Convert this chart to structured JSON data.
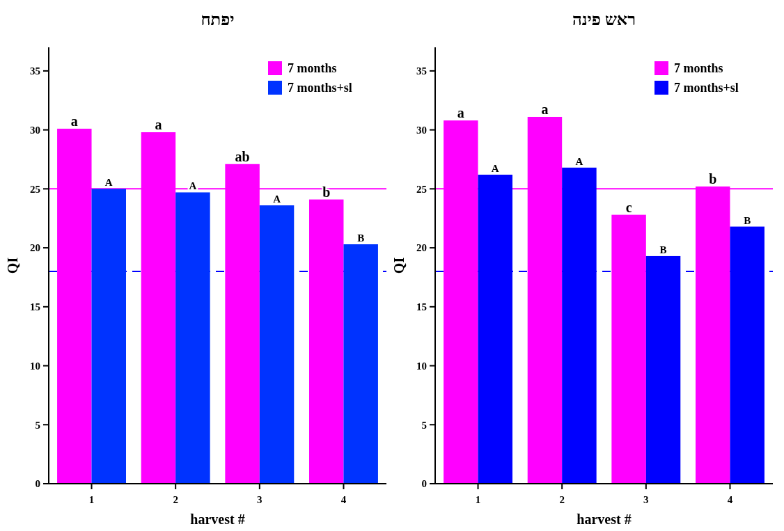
{
  "chart_data": [
    {
      "type": "bar",
      "title": "יפתח",
      "xlabel": "harvest #",
      "ylabel": "QI",
      "categories": [
        "1",
        "2",
        "3",
        "4"
      ],
      "ylim": [
        0,
        37
      ],
      "yticks": [
        0,
        5,
        10,
        15,
        20,
        25,
        30,
        35
      ],
      "legend": "top right",
      "grid": false,
      "series": [
        {
          "name": "7 months",
          "color": "#ff00ff",
          "values": [
            30.1,
            29.8,
            27.1,
            24.1
          ],
          "value_labels": [
            "a",
            "a",
            "ab",
            "b"
          ]
        },
        {
          "name": "7 months+sl",
          "color": "#0033ff",
          "values": [
            25.0,
            24.7,
            23.6,
            20.3
          ],
          "value_labels": [
            "A",
            "A",
            "A",
            "B"
          ]
        }
      ],
      "ref_lines": [
        {
          "axis": "y",
          "value": 25,
          "color": "#ff00ff",
          "line_style": "solid"
        },
        {
          "axis": "y",
          "value": 18,
          "color": "#0000ff",
          "line_style": "dashed"
        }
      ]
    },
    {
      "type": "bar",
      "title": "ראש פינה",
      "xlabel": "harvest #",
      "ylabel": "QI",
      "categories": [
        "1",
        "2",
        "3",
        "4"
      ],
      "ylim": [
        0,
        37
      ],
      "yticks": [
        0,
        5,
        10,
        15,
        20,
        25,
        30,
        35
      ],
      "legend": "top right",
      "grid": false,
      "series": [
        {
          "name": "7 months",
          "color": "#ff00ff",
          "values": [
            30.8,
            31.1,
            22.8,
            25.2
          ],
          "value_labels": [
            "a",
            "a",
            "c",
            "b"
          ]
        },
        {
          "name": "7 months+sl",
          "color": "#0000ff",
          "values": [
            26.2,
            26.8,
            19.3,
            21.8
          ],
          "value_labels": [
            "A",
            "A",
            "B",
            "B"
          ]
        }
      ],
      "ref_lines": [
        {
          "axis": "y",
          "value": 25,
          "color": "#ff00ff",
          "line_style": "solid"
        },
        {
          "axis": "y",
          "value": 18,
          "color": "#0000ff",
          "line_style": "dashed"
        }
      ]
    }
  ]
}
